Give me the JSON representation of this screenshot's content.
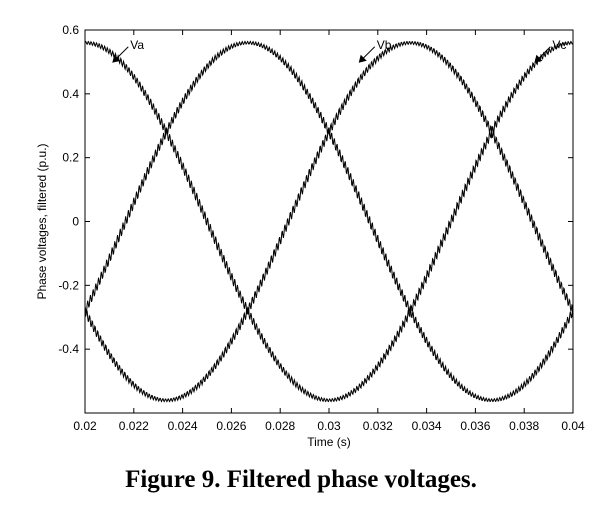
{
  "caption": "Figure 9. Filtered phase voltages.",
  "chart_data": {
    "type": "line",
    "title": "",
    "xlabel": "Time (s)",
    "ylabel": "Phase voltages, filtered (p.u.)",
    "xlim": [
      0.02,
      0.04
    ],
    "ylim": [
      -0.6,
      0.6
    ],
    "xticks": [
      "0.02",
      "0.022",
      "0.024",
      "0.026",
      "0.028",
      "0.03",
      "0.032",
      "0.034",
      "0.036",
      "0.038",
      "0.04"
    ],
    "yticks": [
      "-0.4",
      "-0.2",
      "0",
      "0.2",
      "0.4",
      "0.6"
    ],
    "grid": false,
    "frequency_hz": 50,
    "amplitude_pu": 0.56,
    "series": [
      {
        "name": "Va",
        "phase_deg": 90
      },
      {
        "name": "Vb",
        "phase_deg": -30
      },
      {
        "name": "Vc",
        "phase_deg": 210
      }
    ],
    "annotations": [
      {
        "text": "Va",
        "x": 0.0212,
        "y": 0.56
      },
      {
        "text": "Vb",
        "x": 0.0313,
        "y": 0.56
      },
      {
        "text": "Vc",
        "x": 0.0385,
        "y": 0.56
      }
    ]
  }
}
